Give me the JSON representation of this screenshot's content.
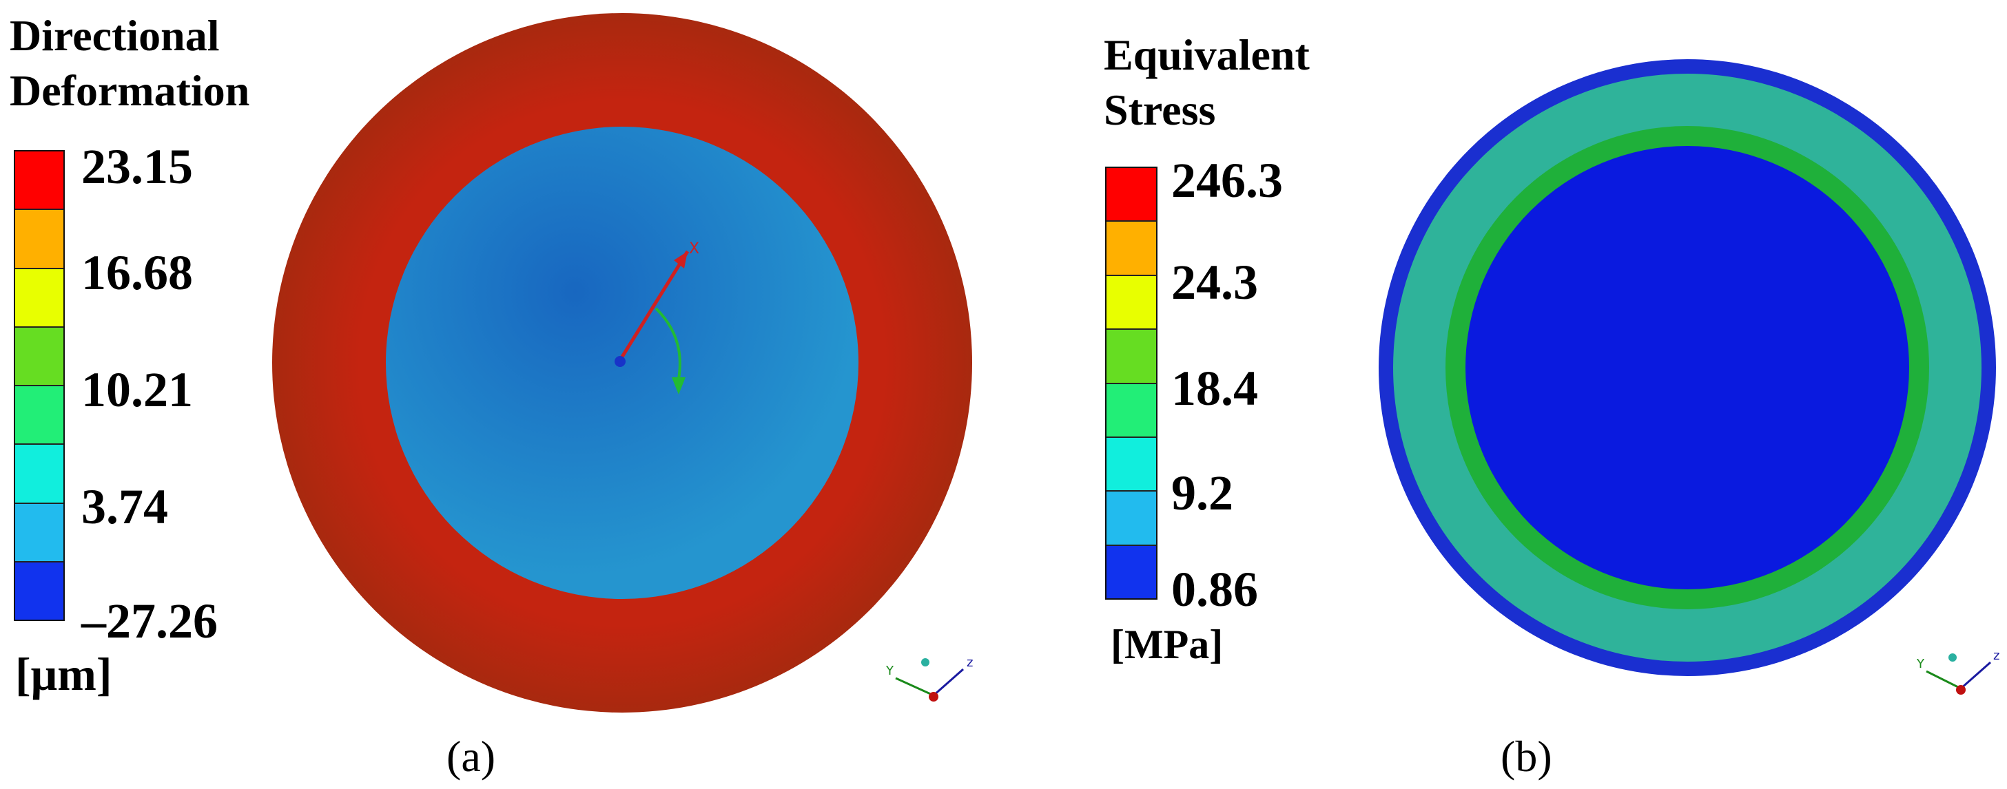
{
  "panels": [
    {
      "caption": "(a)",
      "legend": {
        "title_lines": [
          "Directional",
          "Deformation"
        ],
        "ticks": [
          "23.15",
          "16.68",
          "10.21",
          "3.74",
          "–27.26"
        ],
        "unit": "[μm]",
        "colors": [
          "#ff0000",
          "#ffb000",
          "#e8ff00",
          "#66dd22",
          "#22ee77",
          "#11eedd",
          "#22bbee",
          "#1133ee"
        ]
      },
      "model": {
        "outer_ring_color": "#c1210f",
        "inner_disc_color": "#1f86c8",
        "triad_axis_label": "X"
      }
    },
    {
      "caption": "(b)",
      "legend": {
        "title_lines": [
          "Equivalent",
          "Stress"
        ],
        "ticks": [
          "246.3",
          "24.3",
          "18.4",
          "9.2",
          "0.86"
        ],
        "unit": "[MPa]",
        "colors": [
          "#ff0000",
          "#ffb000",
          "#e8ff00",
          "#66dd22",
          "#22ee77",
          "#11eedd",
          "#22bbee",
          "#1133ee"
        ]
      },
      "model": {
        "rim_color": "#1a2fd0",
        "ring_color": "#2fb39a",
        "band_color": "#1fb03a",
        "center_color": "#0a1adf"
      }
    }
  ],
  "triad_labels": {
    "z": "z",
    "y": "Y"
  }
}
